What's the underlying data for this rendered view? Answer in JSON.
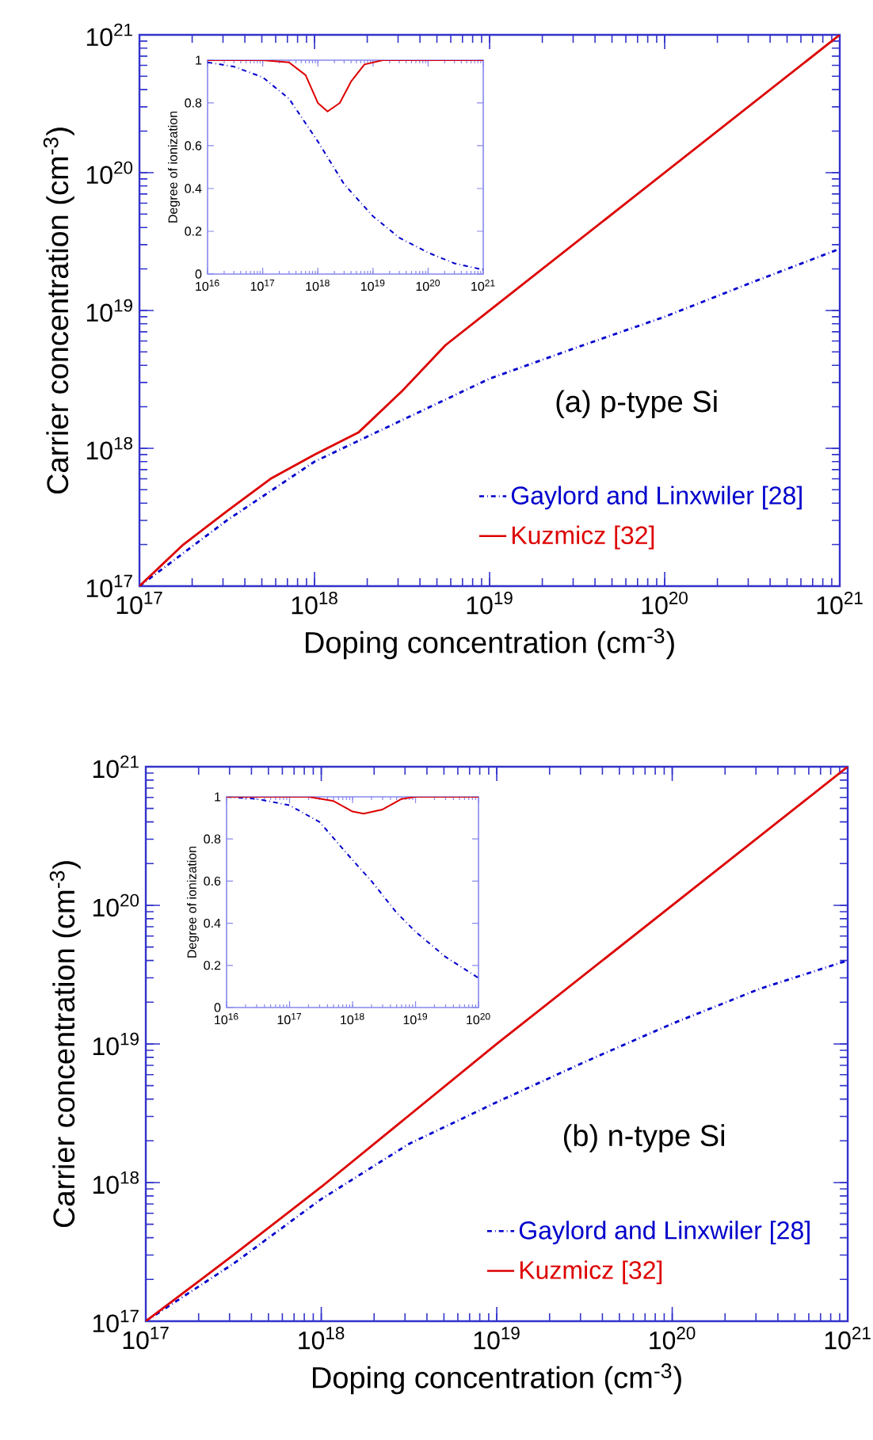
{
  "chart_data": [
    {
      "type": "line",
      "xlabel": "Doping  concentration (cm$^{-3}$)",
      "ylabel": "Carrier concentration (cm$^{-3}$)",
      "annotations": [
        "(a) p-type Si"
      ],
      "log": "xy",
      "legend": "bottom right",
      "xlim": [
        1e+17,
        1e+21
      ],
      "ylim": [
        1e+17,
        1e+21
      ],
      "xticks": [
        {
          "value": 1e+17,
          "label": "10$^{17}$"
        },
        {
          "value": 1e+18,
          "label": "10$^{18}$"
        },
        {
          "value": 1e+19,
          "label": "10$^{19}$"
        },
        {
          "value": 1e+20,
          "label": "10$^{20}$"
        },
        {
          "value": 1e+21,
          "label": "10$^{21}$"
        }
      ],
      "yticks": [
        {
          "value": 1e+17,
          "label": "10$^{17}$"
        },
        {
          "value": 1e+18,
          "label": "10$^{18}$"
        },
        {
          "value": 1e+19,
          "label": "10$^{19}$"
        },
        {
          "value": 1e+20,
          "label": "10$^{20}$"
        },
        {
          "value": 1e+21,
          "label": "10$^{21}$"
        }
      ],
      "series": [
        {
          "name": "Gaylord and Linxwiler [28]",
          "color": "#0000cc",
          "line_style": "dashdot",
          "x": [
            1e+17,
            3.16e+17,
            1e+18,
            3.16e+18,
            1e+19,
            3.16e+19,
            1e+20,
            3.16e+20,
            1e+21
          ],
          "values": [
            1e+17,
            3e+17,
            8e+17,
            1.6e+18,
            3.2e+18,
            5.4e+18,
            9e+18,
            1.6e+19,
            2.8e+19
          ]
        },
        {
          "name": "Kuzmicz [32]",
          "color": "#dd0000",
          "line_style": "solid",
          "x": [
            1e+17,
            1.78e+17,
            3.16e+17,
            5.6e+17,
            1e+18,
            1.78e+18,
            3.16e+18,
            5.6e+18,
            1e+19,
            1e+20,
            1e+21
          ],
          "values": [
            1e+17,
            2e+17,
            3.5e+17,
            6e+17,
            9e+17,
            1.3e+18,
            2.6e+18,
            5.6e+18,
            1e+19,
            1e+20,
            1e+21
          ]
        }
      ]
    },
    {
      "type": "line",
      "ylabel": "Degree of ionization",
      "log": "x",
      "xlim": [
        1e+16,
        1e+21
      ],
      "ylim": [
        0,
        1
      ],
      "xticks": [
        {
          "value": 1e+16,
          "label": "10$^{16}$"
        },
        {
          "value": 1e+17,
          "label": "10$^{17}$"
        },
        {
          "value": 1e+18,
          "label": "10$^{18}$"
        },
        {
          "value": 1e+19,
          "label": "10$^{19}$"
        },
        {
          "value": 1e+20,
          "label": "10$^{20}$"
        },
        {
          "value": 1e+21,
          "label": "10$^{21}$"
        }
      ],
      "yticks": [
        0,
        0.2,
        0.4,
        0.6,
        0.8,
        1
      ],
      "series": [
        {
          "color": "#0000cc",
          "line_style": "dashdot",
          "x": [
            1e+16,
            3e+16,
            1e+17,
            3e+17,
            1e+18,
            3e+18,
            1e+19,
            3e+19,
            1e+20,
            3e+20,
            1e+21
          ],
          "values": [
            0.99,
            0.97,
            0.92,
            0.82,
            0.62,
            0.42,
            0.27,
            0.17,
            0.1,
            0.05,
            0.02
          ]
        },
        {
          "color": "#dd0000",
          "line_style": "solid",
          "x": [
            1e+16,
            1e+17,
            3e+17,
            6e+17,
            1e+18,
            1.5e+18,
            2.5e+18,
            4e+18,
            7e+18,
            1.5e+19,
            1e+21
          ],
          "values": [
            1,
            1,
            0.99,
            0.93,
            0.8,
            0.76,
            0.8,
            0.9,
            0.98,
            1,
            1
          ]
        }
      ]
    },
    {
      "type": "line",
      "xlabel": "Doping concentration (cm$^{-3}$)",
      "ylabel": "Carrier concentration (cm$^{-3}$)",
      "annotations": [
        "(b) n-type Si"
      ],
      "log": "xy",
      "legend": "bottom right",
      "xlim": [
        1e+17,
        1e+21
      ],
      "ylim": [
        1e+17,
        1e+21
      ],
      "xticks": [
        {
          "value": 1e+17,
          "label": "10$^{17}$"
        },
        {
          "value": 1e+18,
          "label": "10$^{18}$"
        },
        {
          "value": 1e+19,
          "label": "10$^{19}$"
        },
        {
          "value": 1e+20,
          "label": "10$^{20}$"
        },
        {
          "value": 1e+21,
          "label": "10$^{21}$"
        }
      ],
      "yticks": [
        {
          "value": 1e+17,
          "label": "10$^{17}$"
        },
        {
          "value": 1e+18,
          "label": "10$^{18}$"
        },
        {
          "value": 1e+19,
          "label": "10$^{19}$"
        },
        {
          "value": 1e+20,
          "label": "10$^{20}$"
        },
        {
          "value": 1e+21,
          "label": "10$^{21}$"
        }
      ],
      "series": [
        {
          "name": "Gaylord and Linxwiler [28]",
          "color": "#0000cc",
          "line_style": "dashdot",
          "x": [
            1e+17,
            3.16e+17,
            1e+18,
            3.16e+18,
            1e+19,
            3.16e+19,
            1e+20,
            3.16e+20,
            1e+21
          ],
          "values": [
            1e+17,
            2.6e+17,
            7.6e+17,
            1.9e+18,
            3.8e+18,
            7.4e+18,
            1.4e+19,
            2.5e+19,
            4e+19
          ]
        },
        {
          "name": "Kuzmicz [32]",
          "color": "#dd0000",
          "line_style": "solid",
          "x": [
            1e+17,
            3.16e+17,
            1e+18,
            1e+19,
            1e+20,
            1e+21
          ],
          "values": [
            1e+17,
            3e+17,
            9.3e+17,
            1e+19,
            1e+20,
            1e+21
          ]
        }
      ]
    },
    {
      "type": "line",
      "ylabel": "Degree of ionization",
      "log": "x",
      "xlim": [
        1e+16,
        1e+20
      ],
      "ylim": [
        0,
        1
      ],
      "xticks": [
        {
          "value": 1e+16,
          "label": "10$^{16}$"
        },
        {
          "value": 1e+17,
          "label": "10$^{17}$"
        },
        {
          "value": 1e+18,
          "label": "10$^{18}$"
        },
        {
          "value": 1e+19,
          "label": "10$^{19}$"
        },
        {
          "value": 1e+20,
          "label": "10$^{20}$"
        }
      ],
      "yticks": [
        0,
        0.2,
        0.4,
        0.6,
        0.8,
        1
      ],
      "series": [
        {
          "color": "#0000cc",
          "line_style": "dashdot",
          "x": [
            1e+16,
            3e+16,
            1e+17,
            3e+17,
            1e+18,
            2e+18,
            5e+18,
            1e+19,
            3e+19,
            1e+20
          ],
          "values": [
            1,
            0.99,
            0.96,
            0.88,
            0.7,
            0.6,
            0.45,
            0.36,
            0.24,
            0.14
          ]
        },
        {
          "color": "#dd0000",
          "line_style": "solid",
          "x": [
            1e+16,
            2e+17,
            5e+17,
            1e+18,
            1.5e+18,
            3e+18,
            6e+18,
            1e+19,
            1e+20
          ],
          "values": [
            1,
            1,
            0.98,
            0.93,
            0.92,
            0.94,
            0.99,
            1,
            1
          ]
        }
      ]
    }
  ]
}
